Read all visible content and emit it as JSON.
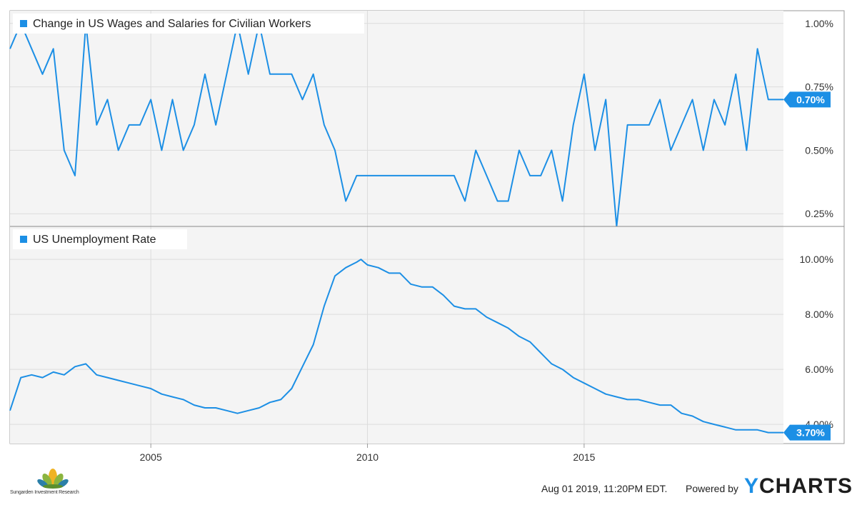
{
  "colors": {
    "line": "#1c8fe5",
    "panel_bg": "#f4f4f4",
    "grid": "#dcdcdc",
    "badge": "#1c8fe5"
  },
  "chart_data": [
    {
      "type": "line",
      "title": "",
      "legend": "Change in US Wages and Salaries for Civilian Workers",
      "legend_placement": "top-left",
      "x_ticks": [
        "2005",
        "2010",
        "2015"
      ],
      "y_ticks": [
        "0.25%",
        "0.50%",
        "0.75%",
        "1.00%"
      ],
      "ylim": [
        0.2,
        1.05
      ],
      "xlim": [
        2001.75,
        2019.6
      ],
      "grid": true,
      "last_value_label": "0.70%",
      "series": [
        {
          "x": [
            2001.75,
            2002.0,
            2002.5,
            2002.75,
            2003.0,
            2003.25,
            2003.5,
            2003.75,
            2004.0,
            2004.25,
            2004.5,
            2004.75,
            2005.0,
            2005.25,
            2005.5,
            2005.75,
            2006.0,
            2006.25,
            2006.5,
            2006.75,
            2007.0,
            2007.25,
            2007.5,
            2007.75,
            2008.0,
            2008.25,
            2008.5,
            2008.75,
            2009.0,
            2009.25,
            2009.5,
            2009.75,
            2010.0,
            2010.25,
            2010.5,
            2010.75,
            2011.0,
            2011.25,
            2011.5,
            2011.75,
            2012.0,
            2012.25,
            2012.5,
            2012.75,
            2013.0,
            2013.25,
            2013.5,
            2013.75,
            2014.0,
            2014.25,
            2014.5,
            2014.75,
            2015.0,
            2015.25,
            2015.5,
            2015.75,
            2016.0,
            2016.25,
            2016.5,
            2016.75,
            2017.0,
            2017.25,
            2017.5,
            2017.75,
            2018.0,
            2018.25,
            2018.5,
            2018.75,
            2019.0,
            2019.25,
            2019.6
          ],
          "values": [
            0.9,
            1.0,
            0.8,
            0.9,
            0.5,
            0.4,
            1.0,
            0.6,
            0.7,
            0.5,
            0.6,
            0.6,
            0.7,
            0.5,
            0.7,
            0.5,
            0.6,
            0.8,
            0.6,
            0.8,
            1.0,
            0.8,
            1.0,
            0.8,
            0.8,
            0.8,
            0.7,
            0.8,
            0.6,
            0.5,
            0.3,
            0.4,
            0.4,
            0.4,
            0.4,
            0.4,
            0.4,
            0.4,
            0.4,
            0.4,
            0.4,
            0.3,
            0.5,
            0.4,
            0.3,
            0.3,
            0.5,
            0.4,
            0.4,
            0.5,
            0.3,
            0.6,
            0.8,
            0.5,
            0.7,
            0.2,
            0.6,
            0.6,
            0.6,
            0.7,
            0.5,
            0.6,
            0.7,
            0.5,
            0.7,
            0.6,
            0.8,
            0.5,
            0.9,
            0.7,
            0.7
          ]
        }
      ]
    },
    {
      "type": "line",
      "title": "",
      "legend": "US Unemployment Rate",
      "legend_placement": "top-left",
      "x_ticks": [
        "2005",
        "2010",
        "2015"
      ],
      "y_ticks": [
        "4.00%",
        "6.00%",
        "8.00%",
        "10.00%"
      ],
      "ylim": [
        3.3,
        11.2
      ],
      "xlim": [
        2001.75,
        2019.6
      ],
      "grid": true,
      "last_value_label": "3.70%",
      "series": [
        {
          "x": [
            2001.75,
            2002.0,
            2002.25,
            2002.5,
            2002.75,
            2003.0,
            2003.25,
            2003.5,
            2003.75,
            2004.0,
            2004.25,
            2004.5,
            2004.75,
            2005.0,
            2005.25,
            2005.5,
            2005.75,
            2006.0,
            2006.25,
            2006.5,
            2006.75,
            2007.0,
            2007.25,
            2007.5,
            2007.75,
            2008.0,
            2008.25,
            2008.5,
            2008.75,
            2009.0,
            2009.25,
            2009.5,
            2009.75,
            2009.85,
            2010.0,
            2010.25,
            2010.5,
            2010.75,
            2011.0,
            2011.25,
            2011.5,
            2011.75,
            2012.0,
            2012.25,
            2012.5,
            2012.75,
            2013.0,
            2013.25,
            2013.5,
            2013.75,
            2014.0,
            2014.25,
            2014.5,
            2014.75,
            2015.0,
            2015.25,
            2015.5,
            2015.75,
            2016.0,
            2016.25,
            2016.5,
            2016.75,
            2017.0,
            2017.25,
            2017.5,
            2017.75,
            2018.0,
            2018.25,
            2018.5,
            2018.75,
            2019.0,
            2019.25,
            2019.45,
            2019.6
          ],
          "values": [
            4.5,
            5.7,
            5.8,
            5.7,
            5.9,
            5.8,
            6.1,
            6.2,
            5.8,
            5.7,
            5.6,
            5.5,
            5.4,
            5.3,
            5.1,
            5.0,
            4.9,
            4.7,
            4.6,
            4.6,
            4.5,
            4.4,
            4.5,
            4.6,
            4.8,
            4.9,
            5.3,
            6.1,
            6.9,
            8.3,
            9.4,
            9.7,
            9.9,
            10.0,
            9.8,
            9.7,
            9.5,
            9.5,
            9.1,
            9.0,
            9.0,
            8.7,
            8.3,
            8.2,
            8.2,
            7.9,
            7.7,
            7.5,
            7.2,
            7.0,
            6.6,
            6.2,
            6.0,
            5.7,
            5.5,
            5.3,
            5.1,
            5.0,
            4.9,
            4.9,
            4.8,
            4.7,
            4.7,
            4.4,
            4.3,
            4.1,
            4.0,
            3.9,
            3.8,
            3.8,
            3.8,
            3.7,
            3.7,
            3.7
          ]
        }
      ]
    }
  ],
  "footer": {
    "timestamp": "Aug 01 2019, 11:20PM EDT.",
    "powered_by": "Powered by",
    "brand_y": "Y",
    "brand_rest": "CHARTS",
    "logo_text": "Sungarden Investment Research"
  }
}
